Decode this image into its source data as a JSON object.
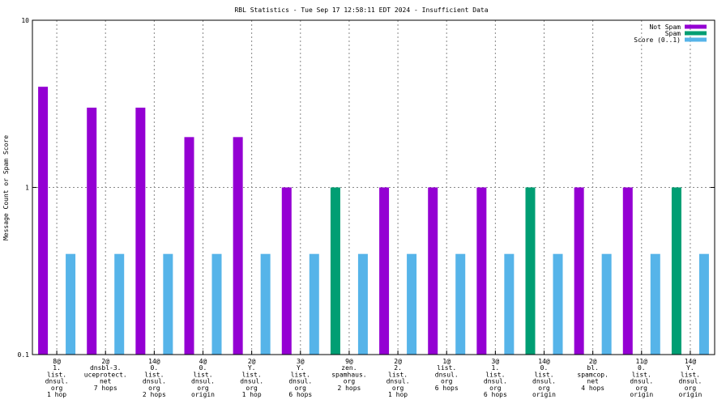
{
  "chart_data": {
    "type": "bar",
    "title": "RBL Statistics - Tue Sep 17 12:58:11 EDT 2024 - Insufficient Data",
    "xlabel": "",
    "ylabel": "Message Count or Spam Score",
    "yscale": "log",
    "ylim": [
      0.1,
      10
    ],
    "yticks": [
      {
        "value": 0.1,
        "label": "0.1"
      },
      {
        "value": 1,
        "label": "1"
      },
      {
        "value": 10,
        "label": "10"
      }
    ],
    "grid": true,
    "legend_position": "top-right",
    "categories": [
      [
        "8@",
        "1.",
        "list.",
        "dnsul.",
        "org",
        "1 hop"
      ],
      [
        "2@",
        "dnsbl-3.",
        "uceprotect.",
        "net",
        "7 hops"
      ],
      [
        "14@",
        "0.",
        "list.",
        "dnsul.",
        "org",
        "2 hops"
      ],
      [
        "4@",
        "0.",
        "list.",
        "dnsul.",
        "org",
        "origin"
      ],
      [
        "2@",
        "Y.",
        "list.",
        "dnsul.",
        "org",
        "1 hop"
      ],
      [
        "3@",
        "Y.",
        "list.",
        "dnsul.",
        "org",
        "6 hops"
      ],
      [
        "9@",
        "zen.",
        "spamhaus.",
        "org",
        "2 hops"
      ],
      [
        "2@",
        "2.",
        "list.",
        "dnsul.",
        "org",
        "1 hop"
      ],
      [
        "1@",
        "list.",
        "dnsul.",
        "org",
        "6 hops"
      ],
      [
        "3@",
        "1.",
        "list.",
        "dnsul.",
        "org",
        "6 hops"
      ],
      [
        "14@",
        "0.",
        "list.",
        "dnsul.",
        "org",
        "origin"
      ],
      [
        "2@",
        "bl.",
        "spamcop.",
        "net",
        "4 hops"
      ],
      [
        "11@",
        "0.",
        "list.",
        "dnsul.",
        "org",
        "origin"
      ],
      [
        "14@",
        "Y.",
        "list.",
        "dnsul.",
        "org",
        "origin"
      ]
    ],
    "series": [
      {
        "name": "Not Spam",
        "color": "#9400d3",
        "values": [
          4,
          3,
          3,
          2,
          2,
          1,
          null,
          1,
          1,
          1,
          null,
          1,
          1,
          null
        ]
      },
      {
        "name": "Spam",
        "color": "#009e73",
        "values": [
          null,
          null,
          null,
          null,
          null,
          null,
          1,
          null,
          null,
          null,
          1,
          null,
          null,
          1
        ]
      },
      {
        "name": "Score (0..1)",
        "color": "#56b4e9",
        "values": [
          0.4,
          0.4,
          0.4,
          0.4,
          0.4,
          0.4,
          0.4,
          0.4,
          0.4,
          0.4,
          0.4,
          0.4,
          0.4,
          0.4
        ]
      }
    ]
  }
}
